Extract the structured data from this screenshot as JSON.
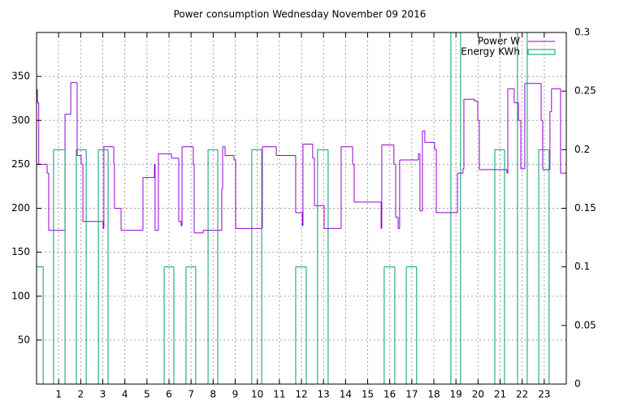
{
  "chart_data": {
    "type": "steps",
    "title": "Power consumption Wednesday November 09 2016",
    "xlim": [
      0,
      24
    ],
    "xticks": [
      1,
      2,
      3,
      4,
      5,
      6,
      7,
      8,
      9,
      10,
      11,
      12,
      13,
      14,
      15,
      16,
      17,
      18,
      19,
      20,
      21,
      22,
      23
    ],
    "ylim": [
      0,
      400
    ],
    "yticks": [
      50,
      100,
      150,
      200,
      250,
      300,
      350
    ],
    "y2lim": [
      0,
      0.3
    ],
    "y2ticks": [
      0,
      0.05,
      0.1,
      0.15,
      0.2,
      0.25,
      0.3
    ],
    "grid": true,
    "legend": "top-right",
    "series": [
      {
        "name": "Power W",
        "color": "#9400d3",
        "x": [
          0,
          0.04,
          0.1,
          0.48,
          0.55,
          1.29,
          1.55,
          1.84,
          2.02,
          2.1,
          3.02,
          3.05,
          3.5,
          3.53,
          3.83,
          4.82,
          5.34,
          5.37,
          5.52,
          6.11,
          6.44,
          6.55,
          6.59,
          7.1,
          7.14,
          7.55,
          8.39,
          8.43,
          8.54,
          8.94,
          9.02,
          10.23,
          10.86,
          11.74,
          12.04,
          12.07,
          12.51,
          12.59,
          13.03,
          13.8,
          14.32,
          14.39,
          15.61,
          15.64,
          16.19,
          16.27,
          16.38,
          16.45,
          17.3,
          17.37,
          17.48,
          17.59,
          18.03,
          18.11,
          19.07,
          19.32,
          19.36,
          19.84,
          19.99,
          20.06,
          21.31,
          21.35,
          21.64,
          21.83,
          21.94,
          22.12,
          22.86,
          22.93,
          23.26,
          23.33,
          23.74
        ],
        "values": [
          335,
          320,
          250,
          240,
          175,
          307,
          343,
          260,
          250,
          185,
          177,
          270,
          250,
          200,
          175,
          235,
          250,
          175,
          262,
          257,
          185,
          180,
          270,
          250,
          172,
          175,
          222,
          270,
          260,
          255,
          177,
          270,
          260,
          195,
          180,
          273,
          257,
          203,
          177,
          270,
          250,
          207,
          177,
          272,
          250,
          190,
          177,
          255,
          262,
          197,
          288,
          275,
          267,
          195,
          240,
          245,
          324,
          322,
          300,
          244,
          240,
          336,
          320,
          300,
          245,
          342,
          300,
          244,
          310,
          336,
          240
        ]
      },
      {
        "name": "Energy KWh",
        "color": "#009e73",
        "axis": "y2",
        "x": [
          0,
          0.3,
          0.77,
          1.29,
          1.8,
          2.25,
          2.8,
          3.24,
          5.78,
          6.22,
          6.77,
          7.21,
          7.77,
          8.21,
          9.75,
          10.2,
          11.74,
          12.22,
          12.73,
          13.21,
          15.75,
          16.23,
          16.75,
          17.22,
          18.77,
          19.21,
          20.76,
          21.2,
          21.79,
          22.23,
          22.75,
          23.22
        ],
        "values": [
          0.1,
          0,
          0.2,
          0,
          0.2,
          0,
          0.2,
          0,
          0.1,
          0,
          0.1,
          0,
          0.2,
          0,
          0.2,
          0,
          0.1,
          0,
          0.2,
          0,
          0.1,
          0,
          0.1,
          0,
          0.3,
          0,
          0.2,
          0,
          0.3,
          0,
          0.2,
          0
        ]
      }
    ]
  }
}
